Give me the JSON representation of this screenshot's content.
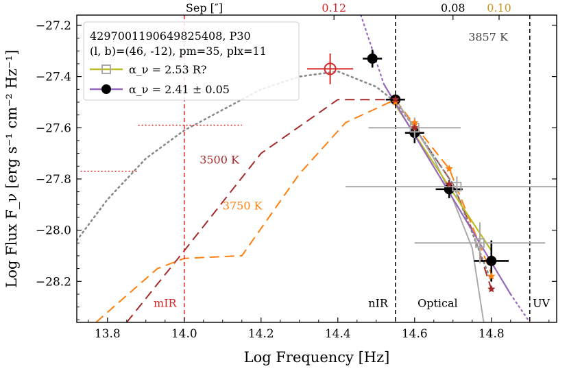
{
  "chart_data": {
    "type": "scatter",
    "xlabel": "Log Frequency [Hz]",
    "ylabel": "Log Flux F_ν [erg s⁻¹ cm⁻² Hz⁻¹]",
    "xlim": [
      13.72,
      14.97
    ],
    "ylim": [
      -28.36,
      -27.16
    ],
    "x_ticks": [
      13.8,
      14.0,
      14.2,
      14.4,
      14.6,
      14.8
    ],
    "y_ticks": [
      -27.2,
      -27.4,
      -27.6,
      -27.8,
      -28.0,
      -28.2
    ],
    "x_tick_labels": [
      "13.8",
      "14.0",
      "14.2",
      "14.4",
      "14.6",
      "14.8"
    ],
    "y_tick_labels": [
      "−27.2",
      "−27.4",
      "−27.6",
      "−27.8",
      "−28.0",
      "−28.2"
    ],
    "top_axis": {
      "label": "Sep [″]",
      "ticks": [
        {
          "x": 14.39,
          "label": "0.12",
          "color": "#d62728"
        },
        {
          "x": 14.7,
          "label": "0.08",
          "color": "#000000"
        },
        {
          "x": 14.82,
          "label": "0.10",
          "color": "#c8961e"
        }
      ]
    },
    "vlines": [
      {
        "x": 14.0,
        "label": "mIR",
        "color": "#d62728",
        "style": "dashed"
      },
      {
        "x": 14.55,
        "label": "nIR",
        "color": "#000000",
        "style": "dashed"
      },
      {
        "x": 14.9,
        "label": "UV",
        "color": "#000000",
        "style": "dashed"
      }
    ],
    "band_labels": [
      {
        "text": "mIR",
        "x": 13.95,
        "y": -28.3,
        "color": "#d62728"
      },
      {
        "text": "nIR",
        "x": 14.505,
        "y": -28.3,
        "color": "#000000"
      },
      {
        "text": "Optical",
        "x": 14.66,
        "y": -28.3,
        "color": "#000000"
      },
      {
        "text": "UV",
        "x": 14.93,
        "y": -28.3,
        "color": "#000000"
      }
    ],
    "legend": {
      "location": "top-left",
      "header_line1": "4297001190649825408, P30",
      "header_line2": "(l, b)=(46, -12), pm=35, plx=11",
      "entries": [
        {
          "label": "α_ν =  2.53   R?",
          "color": "#bcbd22",
          "marker": "open-square",
          "marker_color": "#aaaaaa"
        },
        {
          "label": "α_ν =  2.41 ± 0.05",
          "color": "#9467bd",
          "marker": "filled-circle",
          "marker_color": "#000000"
        }
      ]
    },
    "model_curves": [
      {
        "name": "3500 K",
        "color": "#a52a2a",
        "style": "dashed",
        "label_x": 14.04,
        "label_y": -27.74,
        "x": [
          13.85,
          14.0,
          14.2,
          14.4,
          14.55,
          14.6,
          14.7,
          14.75,
          14.8
        ],
        "y": [
          -28.36,
          -28.08,
          -27.7,
          -27.49,
          -27.49,
          -27.6,
          -27.82,
          -28.0,
          -28.23
        ]
      },
      {
        "name": "3750 K",
        "color": "#ff7f0e",
        "style": "dashed",
        "label_x": 14.1,
        "label_y": -27.92,
        "x": [
          13.77,
          13.93,
          14.0,
          14.15,
          14.3,
          14.42,
          14.55,
          14.6,
          14.69,
          14.8
        ],
        "y": [
          -28.36,
          -28.15,
          -28.11,
          -28.1,
          -27.78,
          -27.58,
          -27.49,
          -27.59,
          -27.76,
          -28.17
        ]
      },
      {
        "name": "3857 K",
        "color": "#888888",
        "style": "dotted",
        "label_x": 14.74,
        "label_y": -27.26,
        "x": [
          13.72,
          13.8,
          13.9,
          14.0,
          14.1,
          14.2,
          14.3,
          14.4,
          14.5,
          14.55,
          14.6,
          14.7,
          14.8
        ],
        "y": [
          -28.04,
          -27.88,
          -27.72,
          -27.61,
          -27.53,
          -27.45,
          -27.4,
          -27.38,
          -27.44,
          -27.5,
          -27.6,
          -27.82,
          -28.2
        ]
      }
    ],
    "fit_lines": [
      {
        "name": "α_ν = 2.53 R?",
        "color": "#bcbd22",
        "style": "solid",
        "x": [
          14.545,
          14.8
        ],
        "y": [
          -27.5,
          -28.08
        ]
      },
      {
        "name": "α_ν = 2.41 ± 0.05",
        "color": "#9467bd",
        "style": "solid",
        "x": [
          14.52,
          14.85
        ],
        "y": [
          -27.43,
          -28.25
        ]
      },
      {
        "name": "α_ν = 2.41 extrapolation",
        "color": "#9467bd",
        "style": "dotted",
        "x": [
          14.46,
          14.52
        ],
        "y": [
          -27.16,
          -27.43
        ]
      },
      {
        "name": "α_ν = 2.41 extrapolation",
        "color": "#9467bd",
        "style": "dotted",
        "x": [
          14.85,
          14.9
        ],
        "y": [
          -28.25,
          -28.36
        ]
      }
    ],
    "curved_fit": {
      "color": "#aaaaaa",
      "x": [
        14.55,
        14.6,
        14.65,
        14.7,
        14.75,
        14.78
      ],
      "y": [
        -27.49,
        -27.6,
        -27.72,
        -27.88,
        -28.07,
        -28.36
      ]
    },
    "mir_limits": [
      {
        "x": [
          13.73,
          13.88
        ],
        "y": -27.77,
        "color": "#d62728"
      },
      {
        "x": [
          13.88,
          14.15
        ],
        "y": -27.59,
        "color": "#d62728"
      }
    ],
    "series": [
      {
        "name": "black points",
        "marker": "filled-circle",
        "color": "#000000",
        "points": [
          {
            "x": 14.49,
            "y": -27.33,
            "xerr": 0.025,
            "yerr": 0.035
          },
          {
            "x": 14.55,
            "y": -27.49,
            "xerr": 0.025,
            "yerr": 0.01
          },
          {
            "x": 14.6,
            "y": -27.62,
            "xerr": 0.025,
            "yerr": 0.04
          },
          {
            "x": 14.69,
            "y": -27.84,
            "xerr": 0.035,
            "yerr": 0.035
          },
          {
            "x": 14.8,
            "y": -28.12,
            "xerr": 0.045,
            "yerr": 0.08
          }
        ]
      },
      {
        "name": "grey squares",
        "marker": "open-square",
        "color": "#aaaaaa",
        "points": [
          {
            "x": 14.6,
            "y": -27.6,
            "xerr": 0.12,
            "yerr": 0.04
          },
          {
            "x": 14.71,
            "y": -27.83,
            "xerr": 0.29,
            "yerr": 0.04
          },
          {
            "x": 14.77,
            "y": -28.05,
            "xerr": 0.17,
            "yerr": 0.08
          }
        ]
      },
      {
        "name": "red circle",
        "marker": "open-circle",
        "color": "#d62728",
        "points": [
          {
            "x": 14.38,
            "y": -27.37,
            "xerr": 0.06,
            "yerr": 0.06
          }
        ]
      },
      {
        "name": "orange stars",
        "marker": "star",
        "color": "#ff7f0e",
        "points": [
          {
            "x": 14.55,
            "y": -27.5
          },
          {
            "x": 14.6,
            "y": -27.58
          },
          {
            "x": 14.69,
            "y": -27.76
          },
          {
            "x": 14.8,
            "y": -28.18
          }
        ]
      },
      {
        "name": "brown stars",
        "marker": "star",
        "color": "#a52a2a",
        "points": [
          {
            "x": 14.55,
            "y": -27.49
          },
          {
            "x": 14.6,
            "y": -27.6
          },
          {
            "x": 14.69,
            "y": -27.82
          },
          {
            "x": 14.8,
            "y": -28.23
          }
        ]
      }
    ]
  }
}
